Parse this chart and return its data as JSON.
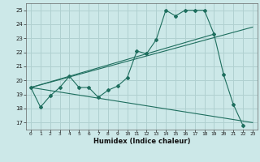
{
  "title": "",
  "xlabel": "Humidex (Indice chaleur)",
  "bg_color": "#cce8e8",
  "grid_color": "#b0d0d0",
  "line_color": "#1e6e5e",
  "xlim": [
    -0.5,
    23.5
  ],
  "ylim": [
    16.5,
    25.5
  ],
  "yticks": [
    17,
    18,
    19,
    20,
    21,
    22,
    23,
    24,
    25
  ],
  "xticks": [
    0,
    1,
    2,
    3,
    4,
    5,
    6,
    7,
    8,
    9,
    10,
    11,
    12,
    13,
    14,
    15,
    16,
    17,
    18,
    19,
    20,
    21,
    22,
    23
  ],
  "series1_y": [
    19.5,
    18.1,
    18.9,
    19.5,
    20.3,
    19.5,
    19.5,
    18.8,
    19.3,
    19.6,
    20.2,
    22.1,
    21.9,
    22.9,
    25.0,
    24.6,
    25.0,
    25.0,
    25.0,
    23.3,
    20.4,
    18.3,
    16.8
  ],
  "line2_x": [
    0,
    23
  ],
  "line2_y": [
    19.5,
    23.8
  ],
  "line3_x": [
    0,
    23
  ],
  "line3_y": [
    19.5,
    17.0
  ],
  "line4_x": [
    0,
    19
  ],
  "line4_y": [
    19.5,
    23.3
  ]
}
